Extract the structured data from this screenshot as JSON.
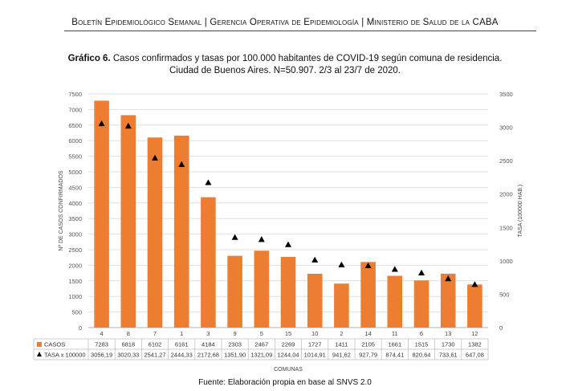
{
  "header": {
    "text": "Boletín Epidemiológico Semanal | Gerencia Operativa de Epidemiología | Ministerio de Salud de la CABA"
  },
  "title": {
    "bold": "Gráfico 6.",
    "line1": "Casos confirmados y tasas por 100.000 habitantes de COVID-19 según comuna de residencia.",
    "line2": "Ciudad de Buenos Aires. N=50.907. 2/3 al 23/7 de 2020."
  },
  "source": "Fuente: Elaboración propia en base al SNVS 2.0",
  "colors": {
    "bar": "#ED7D31",
    "marker": "#000000",
    "grid": "#d9d9d9"
  },
  "chart_data": {
    "type": "bar",
    "title": "Casos confirmados y tasas por 100.000 habitantes de COVID-19 según comuna de residencia.",
    "xlabel": "COMUNAS",
    "ylabel": "Nº DE CASOS CONFIRMADOS",
    "y2label": "TASA (100000 HAB.)",
    "ylim": [
      0,
      7500
    ],
    "y2lim": [
      0,
      3500
    ],
    "yticks": [
      "0",
      "500",
      "1000",
      "1500",
      "2000",
      "2500",
      "3000",
      "3500",
      "4000",
      "4500",
      "5000",
      "5500",
      "6000",
      "6500",
      "7000",
      "7500"
    ],
    "y2ticks": [
      "0",
      "500",
      "1000",
      "1500",
      "2000",
      "2500",
      "3000",
      "3500"
    ],
    "categories": [
      "4",
      "8",
      "7",
      "1",
      "3",
      "9",
      "5",
      "15",
      "10",
      "2",
      "14",
      "11",
      "6",
      "13",
      "12"
    ],
    "series": [
      {
        "name": "CASOS",
        "kind": "bar",
        "values": [
          7283,
          6818,
          6102,
          6161,
          4184,
          2303,
          2467,
          2269,
          1727,
          1411,
          2105,
          1661,
          1515,
          1730,
          1382
        ],
        "labels": [
          "7283",
          "6818",
          "6102",
          "6161",
          "4184",
          "2303",
          "2467",
          "2269",
          "1727",
          "1411",
          "2105",
          "1661",
          "1515",
          "1730",
          "1382"
        ]
      },
      {
        "name": "TASA x 100000",
        "kind": "marker",
        "axis": "right",
        "values": [
          3056.19,
          3020.33,
          2541.27,
          2444.33,
          2172.68,
          1351.9,
          1321.09,
          1244.04,
          1014.91,
          941.62,
          927.79,
          874.41,
          820.64,
          733.61,
          647.08
        ],
        "labels": [
          "3056,19",
          "3020,33",
          "2541,27",
          "2444,33",
          "2172,68",
          "1351,90",
          "1321,09",
          "1244,04",
          "1014,91",
          "941,62",
          "927,79",
          "874,41",
          "820,64",
          "733,61",
          "647,08"
        ]
      }
    ]
  }
}
